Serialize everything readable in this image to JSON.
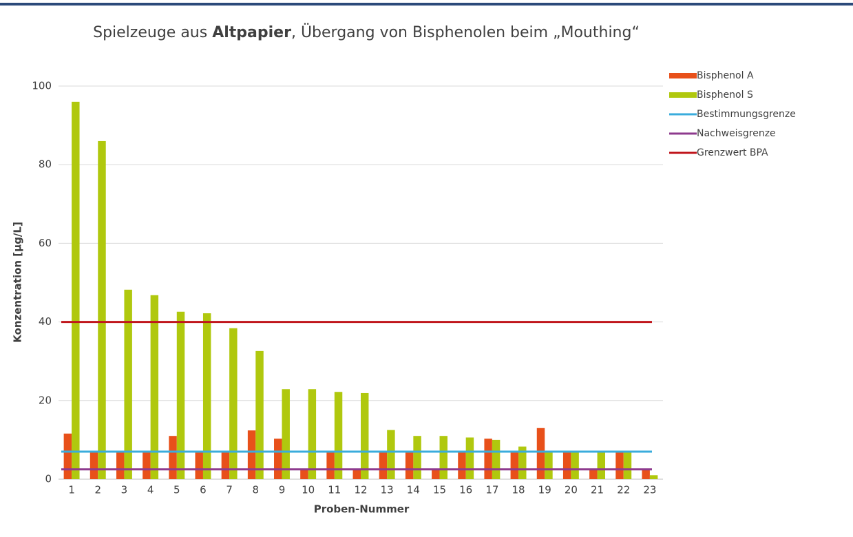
{
  "chart_data": {
    "type": "bar",
    "title": [
      "Spielzeuge aus ",
      "Altpapier",
      ", Übergang von Bisphenolen beim „Mouthing“"
    ],
    "title_bold": [
      false,
      true,
      false
    ],
    "x_label": "Proben-Nummer",
    "y_label": "Konzentration [µg/L]",
    "categories": [
      "1",
      "2",
      "3",
      "4",
      "5",
      "6",
      "7",
      "8",
      "9",
      "10",
      "11",
      "12",
      "13",
      "14",
      "15",
      "16",
      "17",
      "18",
      "19",
      "20",
      "21",
      "22",
      "23"
    ],
    "series": [
      {
        "name": "Bisphenol A",
        "color": "#e8501a",
        "values": [
          11.6,
          7,
          7,
          7,
          11,
          7,
          7,
          12.4,
          10.3,
          2.5,
          7,
          2.5,
          7,
          7,
          2.5,
          7,
          10.3,
          7,
          13,
          7,
          2.5,
          7,
          2.5
        ]
      },
      {
        "name": "Bisphenol S",
        "color": "#b0c80e",
        "values": [
          96,
          86,
          48.2,
          46.8,
          42.6,
          42.2,
          38.4,
          32.6,
          22.9,
          22.9,
          22.2,
          21.9,
          12.5,
          11,
          11,
          10.6,
          10,
          8.3,
          7,
          7,
          7,
          7,
          1
        ]
      }
    ],
    "lines": [
      {
        "name": "Bestimmungsgrenze",
        "color": "#3aacdc",
        "value": 7
      },
      {
        "name": "Nachweisgrenze",
        "color": "#8e3a8e",
        "value": 2.5
      },
      {
        "name": "Grenzwert BPA",
        "color": "#c0161c",
        "value": 40
      }
    ],
    "ylim": [
      0,
      100
    ],
    "yticks": [
      0,
      20,
      40,
      60,
      80,
      100
    ],
    "grid": true,
    "legend": "right"
  }
}
